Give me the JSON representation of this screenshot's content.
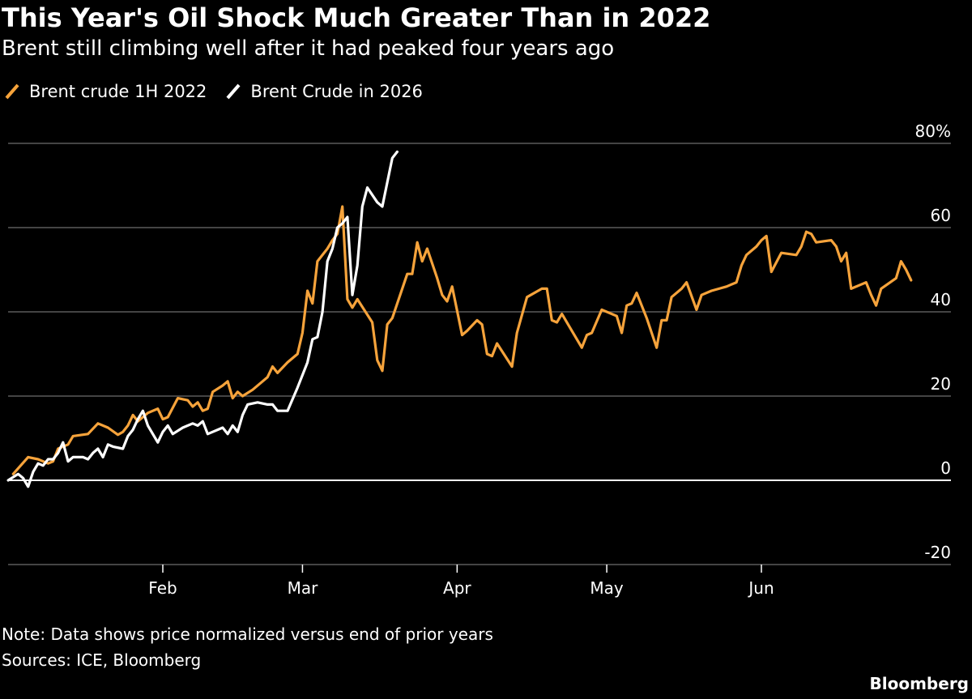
{
  "header": {
    "title": "This Year's Oil Shock Much Greater Than in 2022",
    "subtitle": "Brent still climbing well after it had peaked four years ago"
  },
  "footer": {
    "note": "Note: Data shows price normalized versus end of prior years",
    "sources": "Sources: ICE, Bloomberg",
    "brand": "Bloomberg"
  },
  "chart_data": {
    "type": "line",
    "x_unit": "day of year",
    "month_ticks": [
      {
        "label": "Feb",
        "day": 32
      },
      {
        "label": "Mar",
        "day": 60
      },
      {
        "label": "Apr",
        "day": 91
      },
      {
        "label": "May",
        "day": 121
      },
      {
        "label": "Jun",
        "day": 152
      }
    ],
    "xlim": [
      1,
      182
    ],
    "ylim": [
      -20,
      80
    ],
    "y_ticks": [
      -20,
      0,
      20,
      40,
      60,
      80
    ],
    "y_tick_labels": [
      "-20",
      "0",
      "20",
      "40",
      "60",
      "80%"
    ],
    "grid": true,
    "legend_position": "top-left",
    "series": [
      {
        "name": "Brent crude 1H 2022",
        "color": "#f6a33b",
        "points": [
          [
            2,
            1.5
          ],
          [
            5,
            5.5
          ],
          [
            7,
            5
          ],
          [
            9,
            4
          ],
          [
            10,
            4.5
          ],
          [
            11,
            7.5
          ],
          [
            12,
            8
          ],
          [
            13,
            8.5
          ],
          [
            14,
            10.5
          ],
          [
            17,
            11
          ],
          [
            19,
            13.5
          ],
          [
            21,
            12.5
          ],
          [
            23,
            10.8
          ],
          [
            24,
            11.5
          ],
          [
            25,
            13
          ],
          [
            26,
            15.5
          ],
          [
            27,
            14
          ],
          [
            29,
            16
          ],
          [
            31,
            17
          ],
          [
            32,
            14.5
          ],
          [
            33,
            15
          ],
          [
            35,
            19.5
          ],
          [
            37,
            19
          ],
          [
            38,
            17.5
          ],
          [
            39,
            18.5
          ],
          [
            40,
            16.5
          ],
          [
            41,
            17
          ],
          [
            42,
            21
          ],
          [
            44,
            22.5
          ],
          [
            45,
            23.5
          ],
          [
            46,
            19.5
          ],
          [
            47,
            21
          ],
          [
            48,
            20
          ],
          [
            50,
            21.5
          ],
          [
            52,
            23.5
          ],
          [
            53,
            24.5
          ],
          [
            54,
            27
          ],
          [
            55,
            25.5
          ],
          [
            57,
            28
          ],
          [
            59,
            30
          ],
          [
            60,
            35
          ],
          [
            61,
            45
          ],
          [
            62,
            42
          ],
          [
            63,
            52
          ],
          [
            65,
            55
          ],
          [
            66,
            57
          ],
          [
            67,
            58.5
          ],
          [
            68,
            65
          ],
          [
            69,
            43
          ],
          [
            70,
            41
          ],
          [
            71,
            43
          ],
          [
            74,
            37.5
          ],
          [
            75,
            28.5
          ],
          [
            76,
            26
          ],
          [
            77,
            37
          ],
          [
            78,
            38.5
          ],
          [
            81,
            49
          ],
          [
            82,
            49
          ],
          [
            83,
            56.5
          ],
          [
            84,
            52
          ],
          [
            85,
            55
          ],
          [
            87,
            48
          ],
          [
            88,
            44
          ],
          [
            89,
            42.5
          ],
          [
            90,
            46
          ],
          [
            92,
            34.5
          ],
          [
            93,
            35.5
          ],
          [
            95,
            38
          ],
          [
            96,
            37
          ],
          [
            97,
            30
          ],
          [
            98,
            29.5
          ],
          [
            99,
            32.5
          ],
          [
            102,
            27
          ],
          [
            103,
            35
          ],
          [
            105,
            43.5
          ],
          [
            108,
            45.5
          ],
          [
            109,
            45.5
          ],
          [
            110,
            38
          ],
          [
            111,
            37.5
          ],
          [
            112,
            39.5
          ],
          [
            114,
            35.5
          ],
          [
            116,
            31.5
          ],
          [
            117,
            34.5
          ],
          [
            118,
            35
          ],
          [
            120,
            40.5
          ],
          [
            123,
            39
          ],
          [
            124,
            35
          ],
          [
            125,
            41.5
          ],
          [
            126,
            42
          ],
          [
            127,
            44.5
          ],
          [
            128,
            41.5
          ],
          [
            129,
            38.5
          ],
          [
            131,
            31.5
          ],
          [
            132,
            38
          ],
          [
            133,
            38
          ],
          [
            134,
            43.5
          ],
          [
            136,
            45.5
          ],
          [
            137,
            47
          ],
          [
            139,
            40.5
          ],
          [
            140,
            44
          ],
          [
            142,
            45
          ],
          [
            145,
            46
          ],
          [
            146,
            46.5
          ],
          [
            147,
            47
          ],
          [
            148,
            51
          ],
          [
            149,
            53.5
          ],
          [
            151,
            55.5
          ],
          [
            152,
            57
          ],
          [
            153,
            58
          ],
          [
            154,
            49.5
          ],
          [
            156,
            54
          ],
          [
            159,
            53.5
          ],
          [
            160,
            55.5
          ],
          [
            161,
            59
          ],
          [
            162,
            58.5
          ],
          [
            163,
            56.5
          ],
          [
            166,
            57
          ],
          [
            167,
            55.5
          ],
          [
            168,
            52
          ],
          [
            169,
            54
          ],
          [
            170,
            45.5
          ],
          [
            172,
            46.5
          ],
          [
            173,
            47
          ],
          [
            174,
            44
          ],
          [
            175,
            41.5
          ],
          [
            176,
            45.5
          ],
          [
            179,
            48
          ],
          [
            180,
            52
          ],
          [
            181,
            50
          ],
          [
            182,
            47.5
          ]
        ]
      },
      {
        "name": "Brent Crude in 2026",
        "color": "#ffffff",
        "points": [
          [
            1,
            0
          ],
          [
            3,
            1.5
          ],
          [
            4,
            0.5
          ],
          [
            5,
            -1.5
          ],
          [
            6,
            2
          ],
          [
            7,
            4
          ],
          [
            8,
            3.5
          ],
          [
            9,
            5
          ],
          [
            10,
            5
          ],
          [
            11,
            6.5
          ],
          [
            12,
            9
          ],
          [
            13,
            4.5
          ],
          [
            14,
            5.5
          ],
          [
            16,
            5.5
          ],
          [
            17,
            5
          ],
          [
            18,
            6.5
          ],
          [
            19,
            7.5
          ],
          [
            20,
            5.5
          ],
          [
            21,
            8.5
          ],
          [
            22,
            8
          ],
          [
            24,
            7.5
          ],
          [
            25,
            10.5
          ],
          [
            26,
            12
          ],
          [
            27,
            14.5
          ],
          [
            28,
            16.5
          ],
          [
            29,
            13
          ],
          [
            31,
            9
          ],
          [
            32,
            11.5
          ],
          [
            33,
            13
          ],
          [
            34,
            11
          ],
          [
            36,
            12.5
          ],
          [
            38,
            13.5
          ],
          [
            39,
            13
          ],
          [
            40,
            14
          ],
          [
            41,
            11
          ],
          [
            42,
            11.5
          ],
          [
            44,
            12.5
          ],
          [
            45,
            11
          ],
          [
            46,
            13
          ],
          [
            47,
            11.5
          ],
          [
            48,
            15.5
          ],
          [
            49,
            18
          ],
          [
            51,
            18.5
          ],
          [
            53,
            18
          ],
          [
            54,
            18
          ],
          [
            55,
            16.5
          ],
          [
            57,
            16.5
          ],
          [
            59,
            22
          ],
          [
            61,
            28
          ],
          [
            62,
            33.5
          ],
          [
            63,
            34
          ],
          [
            64,
            40
          ],
          [
            65,
            52
          ],
          [
            66,
            55
          ],
          [
            67,
            60
          ],
          [
            68,
            61
          ],
          [
            69,
            62.5
          ],
          [
            70,
            44
          ],
          [
            71,
            51
          ],
          [
            72,
            65
          ],
          [
            73,
            69.5
          ],
          [
            75,
            66
          ],
          [
            76,
            65
          ],
          [
            78,
            76.5
          ],
          [
            79,
            78
          ]
        ]
      }
    ]
  }
}
